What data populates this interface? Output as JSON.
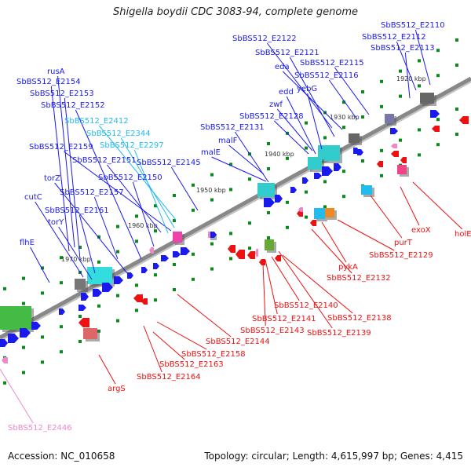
{
  "title": "Shigella boydii CDC 3083-94, complete genome",
  "footer": {
    "accession": "Accession: NC_010658",
    "topology": "Topology: circular; Length: 4,615,997 bp; Genes: 4,415"
  },
  "colors": {
    "forward": "#1a1aee",
    "reverse": "#ee1111",
    "tick_green": "#0a8a1a",
    "axis": "#888888",
    "other": "#ee88cc"
  },
  "scale_labels": [
    "1920 kbp",
    "1930 kbp",
    "1940 kbp",
    "1950 kbp",
    "1960 kbp",
    "1970 kbp"
  ],
  "genes": [
    {
      "label": "SbBS512_E2110",
      "color": "#1a1aee"
    },
    {
      "label": "SbBS512_E2112",
      "color": "#1a1aee"
    },
    {
      "label": "SbBS512_E2113",
      "color": "#1a1aee"
    },
    {
      "label": "SbBS512_E2122",
      "color": "#1a1aee"
    },
    {
      "label": "SbBS512_E2121",
      "color": "#1a1aee"
    },
    {
      "label": "SbBS512_E2115",
      "color": "#1a1aee"
    },
    {
      "label": "eda",
      "color": "#1a1aee"
    },
    {
      "label": "SbBS512_E2116",
      "color": "#1a1aee"
    },
    {
      "label": "yebG",
      "color": "#1a1aee"
    },
    {
      "label": "edd",
      "color": "#1a1aee"
    },
    {
      "label": "rusA",
      "color": "#1a1aee"
    },
    {
      "label": "SbBS512_E2154",
      "color": "#1a1aee"
    },
    {
      "label": "SbBS512_E2153",
      "color": "#1a1aee"
    },
    {
      "label": "SbBS512_E2152",
      "color": "#1a1aee"
    },
    {
      "label": "zwf",
      "color": "#1a1aee"
    },
    {
      "label": "SbBS512_E2128",
      "color": "#1a1aee"
    },
    {
      "label": "SbBS512_E2412",
      "color": "#22bbee"
    },
    {
      "label": "SbBS512_E2131",
      "color": "#1a1aee"
    },
    {
      "label": "SbBS512_E2344",
      "color": "#22bbee"
    },
    {
      "label": "malF",
      "color": "#1a1aee"
    },
    {
      "label": "SbBS512_E2159",
      "color": "#1a1aee"
    },
    {
      "label": "SbBS512_E2297",
      "color": "#22bbee"
    },
    {
      "label": "malE",
      "color": "#1a1aee"
    },
    {
      "label": "SbBS512_E2151",
      "color": "#1a1aee"
    },
    {
      "label": "SbBS512_E2145",
      "color": "#1a1aee"
    },
    {
      "label": "torZ",
      "color": "#1a1aee"
    },
    {
      "label": "SbBS512_E2150",
      "color": "#1a1aee"
    },
    {
      "label": "cutC",
      "color": "#1a1aee"
    },
    {
      "label": "SbBS512_E2157",
      "color": "#1a1aee"
    },
    {
      "label": "SbBS512_E2161",
      "color": "#1a1aee"
    },
    {
      "label": "torY",
      "color": "#1a1aee"
    },
    {
      "label": "flhE",
      "color": "#1a1aee"
    },
    {
      "label": "exoX",
      "color": "#ee1111"
    },
    {
      "label": "holE",
      "color": "#ee1111"
    },
    {
      "label": "purT",
      "color": "#ee1111"
    },
    {
      "label": "SbBS512_E2129",
      "color": "#ee1111"
    },
    {
      "label": "pykA",
      "color": "#ee1111"
    },
    {
      "label": "SbBS512_E2132",
      "color": "#ee1111"
    },
    {
      "label": "SbBS512_E2140",
      "color": "#ee1111"
    },
    {
      "label": "SbBS512_E2141",
      "color": "#ee1111"
    },
    {
      "label": "SbBS512_E2138",
      "color": "#ee1111"
    },
    {
      "label": "SbBS512_E2143",
      "color": "#ee1111"
    },
    {
      "label": "SbBS512_E2139",
      "color": "#ee1111"
    },
    {
      "label": "SbBS512_E2144",
      "color": "#ee1111"
    },
    {
      "label": "SbBS512_E2158",
      "color": "#ee1111"
    },
    {
      "label": "SbBS512_E2163",
      "color": "#ee1111"
    },
    {
      "label": "SbBS512_E2164",
      "color": "#ee1111"
    },
    {
      "label": "argS",
      "color": "#ee1111"
    },
    {
      "label": "SbBS512_E2446",
      "color": "#ee88cc"
    }
  ]
}
